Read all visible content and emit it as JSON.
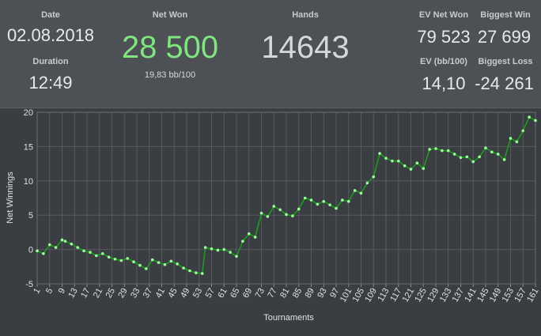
{
  "stats": {
    "date_label": "Date",
    "date_value": "02.08.2018",
    "duration_label": "Duration",
    "duration_value": "12:49",
    "net_won_label": "Net Won",
    "net_won_value": "28 500",
    "bb_per_100": "19,83 bb/100",
    "hands_label": "Hands",
    "hands_value": "14643",
    "ev_net_won_label": "EV Net Won",
    "ev_net_won_value": "79 523",
    "biggest_win_label": "Biggest Win",
    "biggest_win_value": "27 699",
    "ev_bb_label": "EV (bb/100)",
    "ev_bb_value": "14,10",
    "biggest_loss_label": "Biggest Loss",
    "biggest_loss_value": "-24 261"
  },
  "colors": {
    "net_won": "#7fe57f",
    "line": "#1a9e1a",
    "marker": "#9cff9c"
  },
  "chart_data": {
    "type": "line",
    "xlabel": "Tournaments",
    "ylabel": "Net Winnings",
    "ylim": [
      -5,
      20
    ],
    "yticks": [
      -5,
      0,
      5,
      10,
      15,
      20
    ],
    "xlim": [
      1,
      161
    ],
    "xticks": [
      1,
      5,
      9,
      13,
      17,
      21,
      25,
      29,
      33,
      37,
      41,
      45,
      49,
      53,
      57,
      61,
      65,
      69,
      73,
      77,
      81,
      85,
      89,
      93,
      97,
      101,
      105,
      109,
      113,
      117,
      121,
      125,
      129,
      133,
      137,
      141,
      145,
      149,
      153,
      157,
      161
    ],
    "grid": true,
    "legend": "none",
    "series": [
      {
        "x": [
          1,
          3,
          5,
          7,
          9,
          10,
          12,
          14,
          16,
          18,
          20,
          22,
          24,
          26,
          28,
          30,
          32,
          34,
          36,
          38,
          40,
          42,
          44,
          46,
          48,
          50,
          52,
          54,
          55,
          57,
          59,
          61,
          63,
          65,
          67,
          69,
          71,
          73,
          75,
          77,
          79,
          81,
          83,
          85,
          87,
          89,
          91,
          93,
          95,
          97,
          99,
          101,
          103,
          105,
          107,
          109,
          111,
          113,
          115,
          117,
          119,
          121,
          123,
          125,
          127,
          129,
          131,
          133,
          135,
          137,
          139,
          141,
          143,
          145,
          147,
          149,
          151,
          153,
          155,
          157,
          159,
          161
        ],
        "y": [
          -0.2,
          -0.6,
          0.7,
          0.3,
          1.4,
          1.2,
          0.8,
          0.3,
          -0.2,
          -0.4,
          -0.9,
          -0.6,
          -1.1,
          -1.4,
          -1.6,
          -1.3,
          -1.8,
          -2.3,
          -2.8,
          -1.5,
          -1.9,
          -2.2,
          -1.7,
          -2.1,
          -2.7,
          -3.1,
          -3.4,
          -3.5,
          0.3,
          0.1,
          -0.1,
          0.0,
          -0.4,
          -1.0,
          1.2,
          2.3,
          1.8,
          5.3,
          4.8,
          6.3,
          5.8,
          5.1,
          4.9,
          5.9,
          7.5,
          7.2,
          6.6,
          7.0,
          6.5,
          6.0,
          7.2,
          7.0,
          8.6,
          8.2,
          9.7,
          10.6,
          14.0,
          13.3,
          12.9,
          12.9,
          12.2,
          11.7,
          12.6,
          11.8,
          14.6,
          14.7,
          14.4,
          14.4,
          13.9,
          13.4,
          13.5,
          12.8,
          13.5,
          14.8,
          14.2,
          13.9,
          13.1,
          16.2,
          15.7,
          17.3,
          19.3,
          18.8
        ]
      }
    ]
  }
}
